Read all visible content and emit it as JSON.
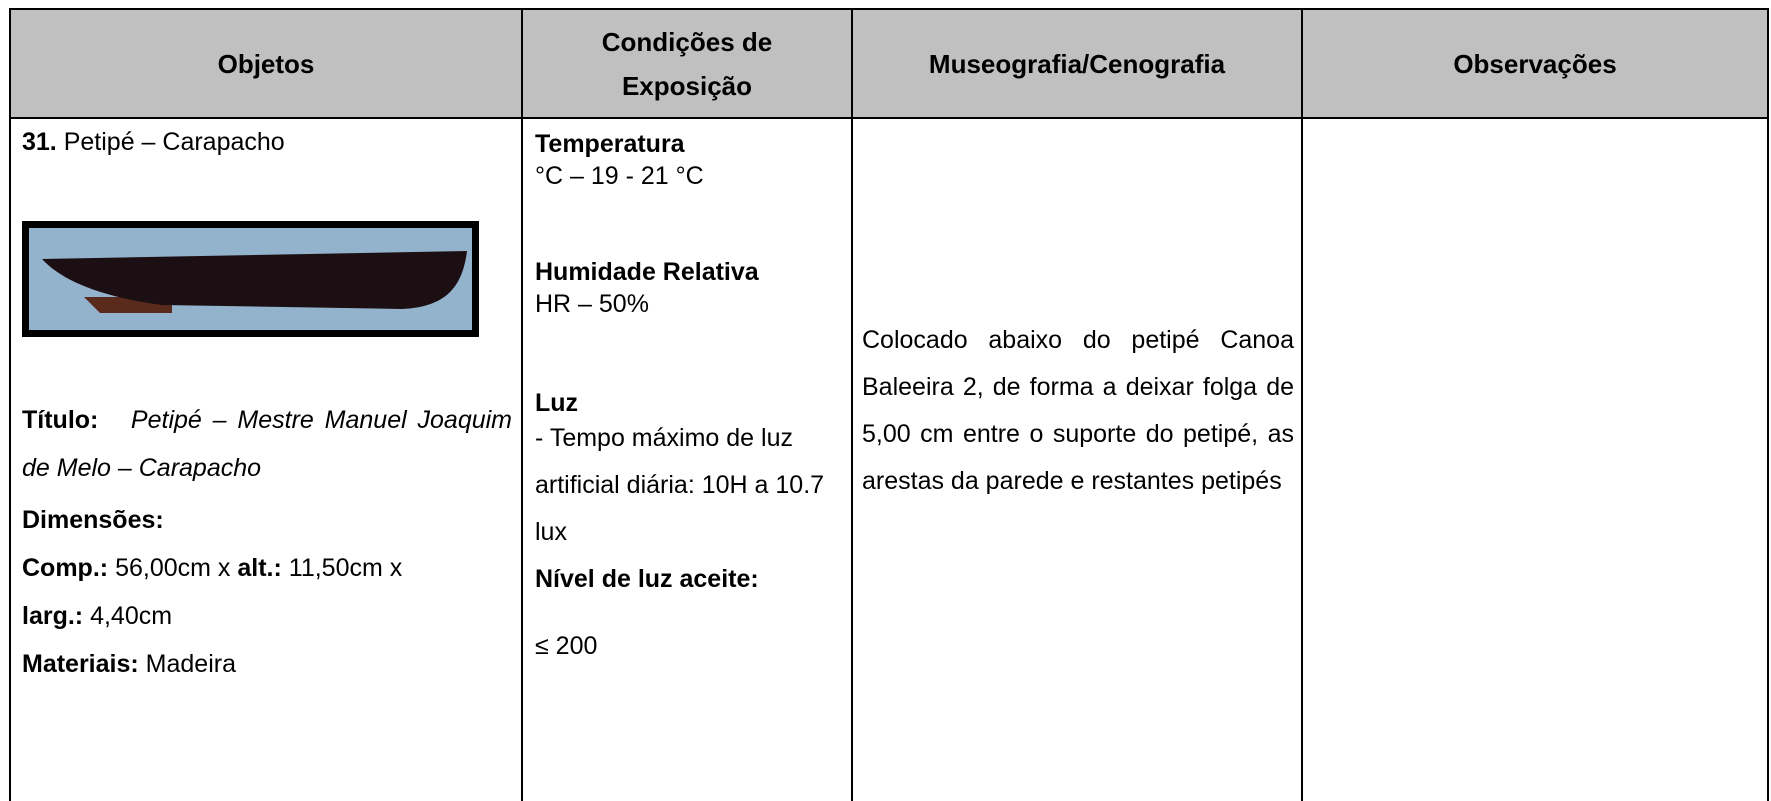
{
  "header": {
    "columns": [
      "Objetos",
      "Condições de Exposição",
      "Museografia/Cenografia",
      "Observações"
    ]
  },
  "object": {
    "number": "31.",
    "name": "Petipé – Carapacho",
    "title_label": "Título:",
    "title": "Petipé – Mestre Manuel Joaquim de Melo – Carapacho",
    "dimensions_label": "Dimensões:",
    "length_label": "Comp.:",
    "length": "56,00cm x",
    "height_label": "alt.:",
    "height": "11,50cm x",
    "width_label": "larg.:",
    "width": "4,40cm",
    "materials_label": "Materiais:",
    "materials": "Madeira"
  },
  "conditions": {
    "temperature_label": "Temperatura",
    "temperature": "°C – 19 - 21 °C",
    "humidity_label": "Humidade Relativa",
    "humidity": "HR – 50%",
    "light_label": "Luz",
    "light": "- Tempo máximo de luz artificial diária: 10H  a 10.7 lux",
    "accepted_label": "Nível de luz aceite:",
    "accepted": "≤ 200"
  },
  "museography": "Colocado abaixo do petipé Canoa Baleeira 2, de forma a deixar folga de 5,00 cm entre o suporte do petipé, as arestas da parede e restantes petipés"
}
